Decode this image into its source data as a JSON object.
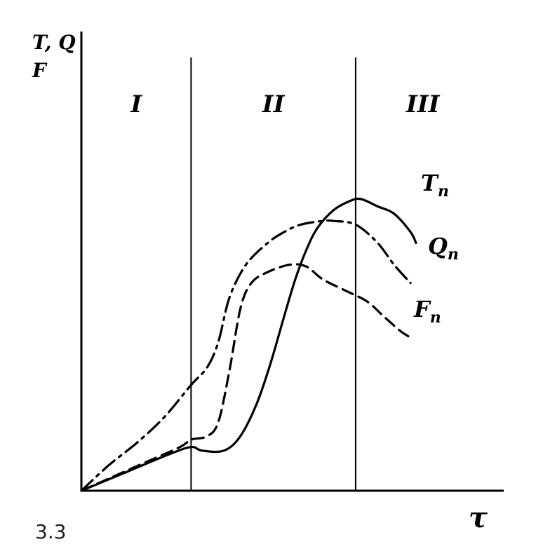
{
  "figure_label": "3.3",
  "chart_data": {
    "type": "line",
    "title": "",
    "ylabel_line1": "T, Q",
    "ylabel_line2": "F",
    "xlabel": "τ",
    "regions": [
      "I",
      "II",
      "III"
    ],
    "boundaries_x": [
      0.2,
      0.5
    ],
    "xlim": [
      0,
      0.77
    ],
    "ylim": [
      0,
      1.0
    ],
    "series": [
      {
        "name": "T_п",
        "label_main": "T",
        "label_sub": "п",
        "style": "solid",
        "points": [
          [
            0,
            0
          ],
          [
            0.08,
            0.05
          ],
          [
            0.16,
            0.1
          ],
          [
            0.2,
            0.12
          ],
          [
            0.22,
            0.11
          ],
          [
            0.26,
            0.11
          ],
          [
            0.29,
            0.15
          ],
          [
            0.32,
            0.24
          ],
          [
            0.345,
            0.35
          ],
          [
            0.37,
            0.48
          ],
          [
            0.39,
            0.58
          ],
          [
            0.41,
            0.66
          ],
          [
            0.43,
            0.72
          ],
          [
            0.46,
            0.77
          ],
          [
            0.49,
            0.795
          ],
          [
            0.51,
            0.8
          ],
          [
            0.54,
            0.78
          ],
          [
            0.57,
            0.76
          ],
          [
            0.6,
            0.71
          ],
          [
            0.61,
            0.68
          ]
        ]
      },
      {
        "name": "Q_п",
        "label_main": "Q",
        "label_sub": "п",
        "style": "dashdot",
        "points": [
          [
            0,
            0
          ],
          [
            0.05,
            0.07
          ],
          [
            0.1,
            0.13
          ],
          [
            0.15,
            0.2
          ],
          [
            0.2,
            0.29
          ],
          [
            0.23,
            0.34
          ],
          [
            0.25,
            0.41
          ],
          [
            0.27,
            0.53
          ],
          [
            0.3,
            0.62
          ],
          [
            0.34,
            0.68
          ],
          [
            0.37,
            0.71
          ],
          [
            0.4,
            0.73
          ],
          [
            0.44,
            0.74
          ],
          [
            0.46,
            0.74
          ],
          [
            0.5,
            0.73
          ],
          [
            0.54,
            0.68
          ],
          [
            0.57,
            0.62
          ],
          [
            0.6,
            0.57
          ]
        ]
      },
      {
        "name": "F_п",
        "label_main": "F",
        "label_sub": "п",
        "style": "dashed",
        "points": [
          [
            0,
            0
          ],
          [
            0.06,
            0.04
          ],
          [
            0.12,
            0.08
          ],
          [
            0.18,
            0.12
          ],
          [
            0.2,
            0.14
          ],
          [
            0.23,
            0.15
          ],
          [
            0.25,
            0.19
          ],
          [
            0.27,
            0.33
          ],
          [
            0.29,
            0.5
          ],
          [
            0.31,
            0.57
          ],
          [
            0.34,
            0.6
          ],
          [
            0.38,
            0.62
          ],
          [
            0.41,
            0.615
          ],
          [
            0.44,
            0.58
          ],
          [
            0.48,
            0.55
          ],
          [
            0.52,
            0.52
          ],
          [
            0.55,
            0.48
          ],
          [
            0.58,
            0.44
          ],
          [
            0.6,
            0.42
          ]
        ]
      }
    ]
  }
}
